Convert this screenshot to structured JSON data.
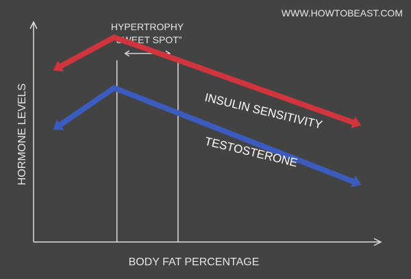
{
  "chart_data": {
    "type": "line",
    "watermark": "WWW.HOWTOBEAST.COM",
    "xlabel": "BODY FAT PERCENTAGE",
    "ylabel": "HORMONE LEVELS",
    "highlight": {
      "label_line1": "HYPERTROPHY",
      "label_line2": "“SWEET SPOT”",
      "x_range": [
        30,
        52
      ]
    },
    "xlim": [
      0,
      125
    ],
    "ylim": [
      0,
      100
    ],
    "grid": false,
    "series": [
      {
        "name": "INSULIN SENSITIVITY",
        "color": "#d0343c",
        "x": [
          7,
          29,
          118
        ],
        "y": [
          78,
          93,
          53
        ]
      },
      {
        "name": "TESTOSTERONE",
        "color": "#3b5bbf",
        "x": [
          7,
          29,
          118
        ],
        "y": [
          51,
          70,
          26
        ]
      }
    ]
  }
}
